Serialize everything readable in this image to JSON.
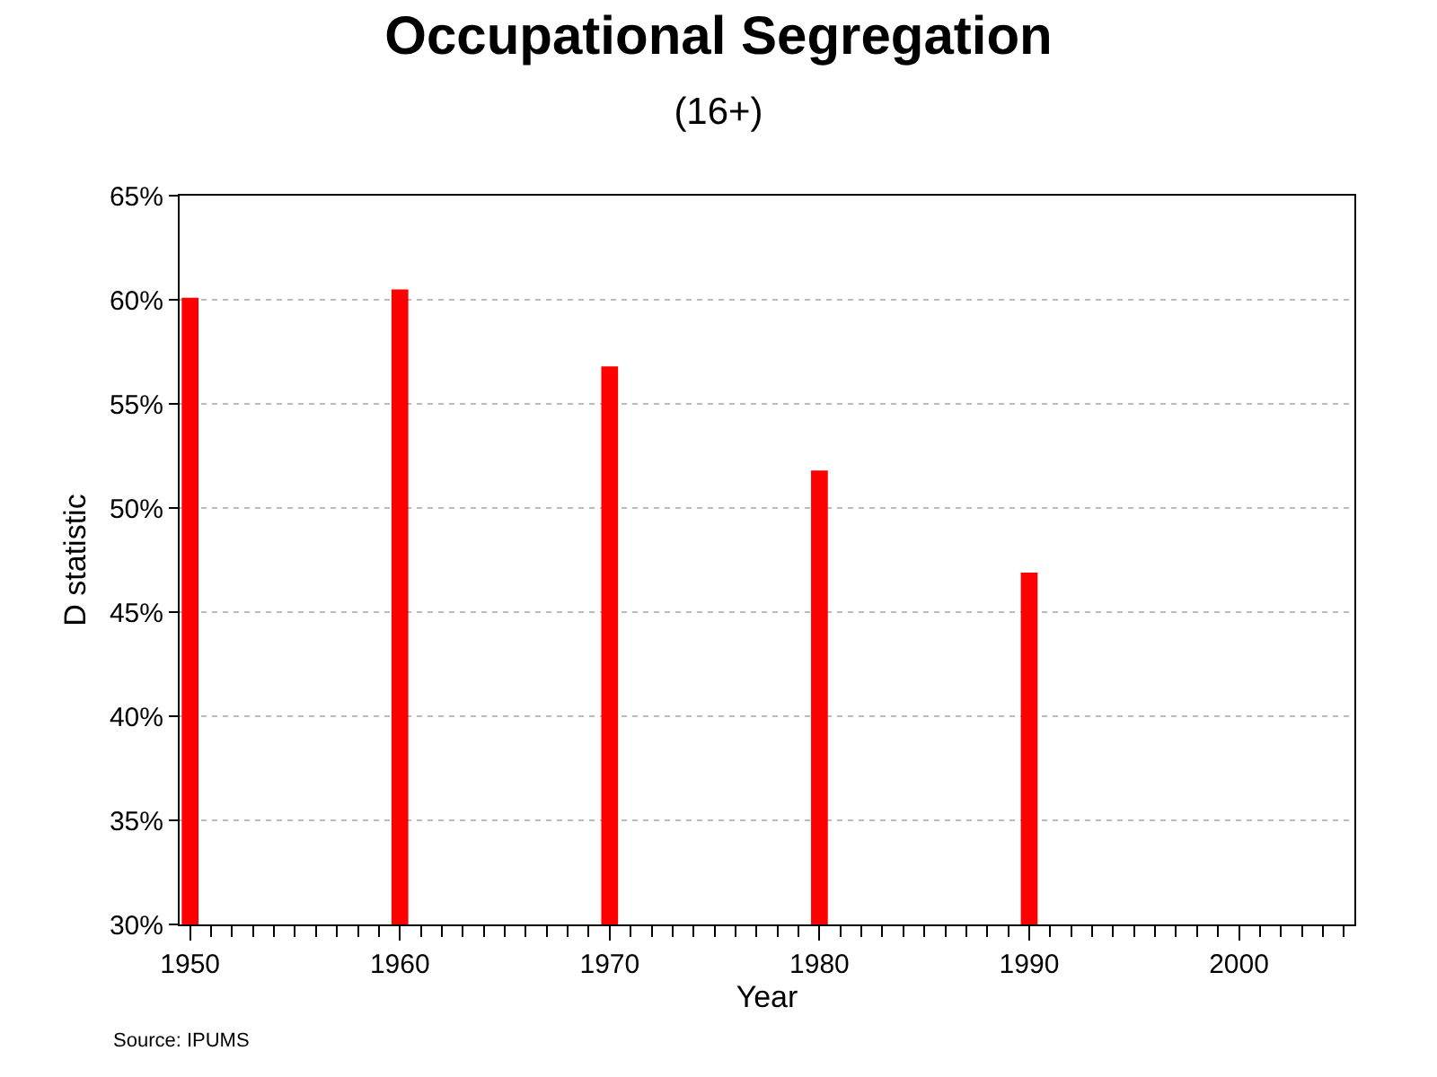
{
  "chart_data": {
    "type": "bar",
    "title": "Occupational Segregation",
    "subtitle": "(16+)",
    "xlabel": "Year",
    "ylabel": "D statistic",
    "x": [
      1950,
      1960,
      1970,
      1980,
      1990
    ],
    "values": [
      60.1,
      60.5,
      56.8,
      51.8,
      46.9
    ],
    "color": "#ff0000",
    "xlim": [
      1949.5,
      2005.5
    ],
    "xticks": [
      1950,
      1960,
      1970,
      1980,
      1990,
      2000
    ],
    "ylim": [
      30,
      65
    ],
    "yticks": [
      {
        "value": 30,
        "label": "30%"
      },
      {
        "value": 35,
        "label": "35%"
      },
      {
        "value": 40,
        "label": "40%"
      },
      {
        "value": 45,
        "label": "45%"
      },
      {
        "value": 50,
        "label": "50%"
      },
      {
        "value": 55,
        "label": "55%"
      },
      {
        "value": 60,
        "label": "60%"
      },
      {
        "value": 65,
        "label": "65%"
      }
    ],
    "grid": "y",
    "annotations": [
      "Source: IPUMS"
    ]
  }
}
